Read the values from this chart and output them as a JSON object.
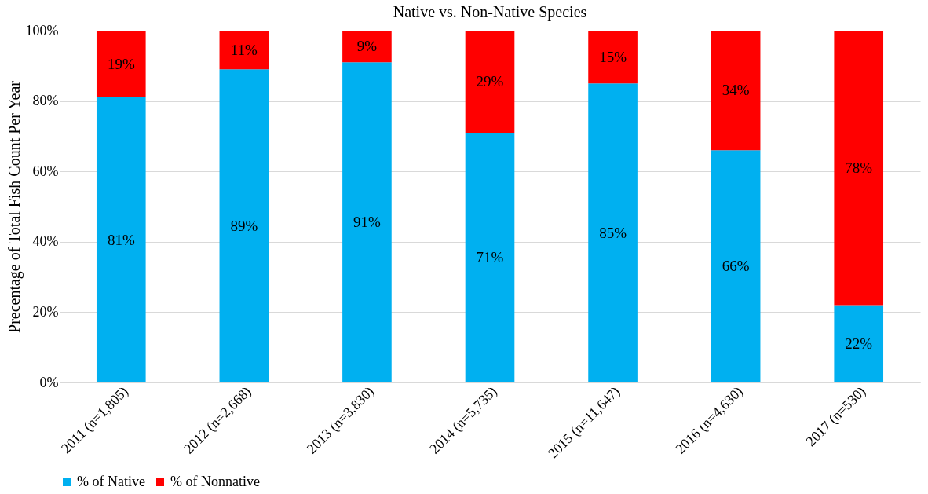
{
  "chart_data": {
    "type": "bar",
    "title": "Native vs. Non-Native Species",
    "ylabel": "Precentage of Total Fish Count Per Year",
    "categories": [
      "2011 (n=1,805)",
      "2012 (n=2,668)",
      "2013 (n=3,830)",
      "2014 (n=5,735)",
      "2015 (n=11,647)",
      "2016 (n=4,630)",
      "2017 (n=530)"
    ],
    "stacked": true,
    "series": [
      {
        "name": "% of Native",
        "color": "#00b0f0",
        "values": [
          81,
          89,
          91,
          71,
          85,
          66,
          22
        ],
        "value_labels": [
          "81%",
          "89%",
          "91%",
          "71%",
          "85%",
          "66%",
          "22%"
        ]
      },
      {
        "name": "% of Nonnative",
        "color": "#ff0000",
        "values": [
          19,
          11,
          9,
          29,
          15,
          34,
          78
        ],
        "value_labels": [
          "19%",
          "11%",
          "9%",
          "29%",
          "15%",
          "34%",
          "78%"
        ]
      }
    ],
    "ylim": [
      0,
      100
    ],
    "yticks": [
      {
        "value": 0,
        "label": "0%"
      },
      {
        "value": 20,
        "label": "20%"
      },
      {
        "value": 40,
        "label": "40%"
      },
      {
        "value": 60,
        "label": "60%"
      },
      {
        "value": 80,
        "label": "80%"
      },
      {
        "value": 100,
        "label": "100%"
      }
    ],
    "grid": "y",
    "legend": "bottom"
  }
}
